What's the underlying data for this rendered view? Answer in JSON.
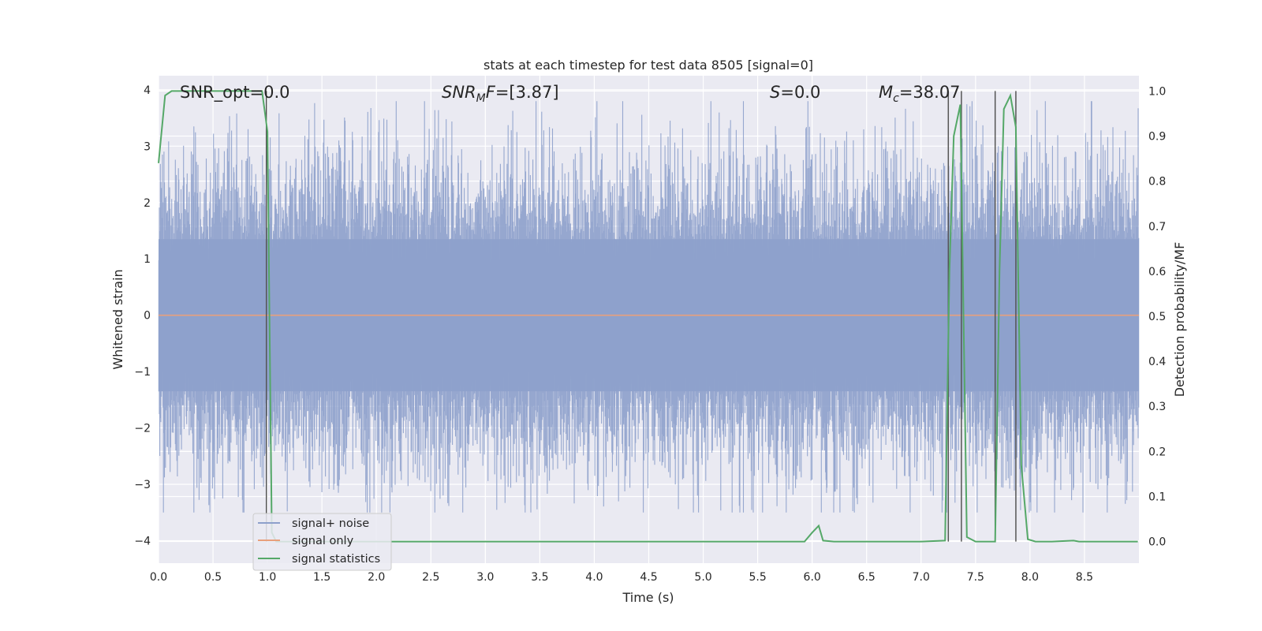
{
  "chart_data": {
    "type": "line",
    "title": "stats at each timestep for test data 8505 [signal=0]",
    "xlabel": "Time (s)",
    "ylabel": "Whitened strain",
    "ylabel_right": "Detection probability/MF",
    "xlim": [
      0.0,
      9.0
    ],
    "ylim": [
      -4.4,
      4.25
    ],
    "ylim_right": [
      -0.048,
      1.034
    ],
    "x_ticks": [
      "0.0",
      "0.5",
      "1.0",
      "1.5",
      "2.0",
      "2.5",
      "3.0",
      "3.5",
      "4.0",
      "4.5",
      "5.0",
      "5.5",
      "6.0",
      "6.5",
      "7.0",
      "7.5",
      "8.0",
      "8.5"
    ],
    "y_ticks": [
      "4",
      "3",
      "2",
      "1",
      "0",
      "−1",
      "−2",
      "−3",
      "−4"
    ],
    "y_right_ticks": [
      "1.0",
      "0.9",
      "0.8",
      "0.7",
      "0.6",
      "0.5",
      "0.4",
      "0.3",
      "0.2",
      "0.1",
      "0.0"
    ],
    "annotations": [
      {
        "name": "snr-opt",
        "text": "SNR_opt=0.0"
      },
      {
        "name": "snr-mf",
        "text": "SNR_MF=[3.87]"
      },
      {
        "name": "s-stat",
        "text": "S=0.0"
      },
      {
        "name": "chirp-mass",
        "text": "M_c=38.07"
      }
    ],
    "legend": {
      "placement": "lower-left",
      "entries": [
        {
          "label": "signal+ noise",
          "color": "#8da0cb"
        },
        {
          "label": "signal only",
          "color": "#e8a07c"
        },
        {
          "label": "signal statistics",
          "color": "#55a868"
        }
      ]
    },
    "series": [
      {
        "name": "signal+ noise",
        "color": "#8da0cb",
        "style": "dense whitened noise, approx. Gaussian, |max| about 3.8",
        "y_range": [
          -3.5,
          3.8
        ]
      },
      {
        "name": "signal only",
        "color": "#e8a07c",
        "x": [
          0.0,
          9.0
        ],
        "y": [
          0.0,
          0.0
        ]
      },
      {
        "name": "signal statistics",
        "color": "#55a868",
        "axis": "right",
        "x": [
          0.0,
          0.06,
          0.12,
          0.2,
          0.3,
          0.5,
          0.7,
          0.9,
          0.95,
          1.0,
          1.04,
          1.08,
          1.12,
          1.2,
          1.5,
          2.0,
          2.5,
          3.0,
          3.5,
          4.0,
          4.5,
          5.0,
          5.5,
          5.93,
          6.0,
          6.06,
          6.1,
          6.2,
          6.5,
          7.0,
          7.22,
          7.26,
          7.3,
          7.36,
          7.42,
          7.5,
          7.6,
          7.68,
          7.72,
          7.76,
          7.82,
          7.87,
          7.92,
          7.98,
          8.05,
          8.2,
          8.4,
          8.45,
          8.5,
          8.75,
          8.99
        ],
        "y": [
          0.84,
          0.99,
          1.0,
          1.0,
          1.0,
          1.0,
          1.0,
          1.0,
          1.0,
          0.91,
          0.02,
          0.0,
          0.0,
          0.0,
          0.0,
          0.0,
          0.0,
          0.0,
          0.0,
          0.0,
          0.0,
          0.0,
          0.0,
          0.0,
          0.02,
          0.035,
          0.002,
          0.0,
          0.0,
          0.0,
          0.002,
          0.6,
          0.9,
          0.97,
          0.01,
          0.0,
          0.0,
          0.0,
          0.6,
          0.96,
          0.99,
          0.92,
          0.17,
          0.005,
          0.0,
          0.0,
          0.002,
          0.0,
          0.0,
          0.0,
          0.0
        ]
      }
    ],
    "vlines": [
      0.99,
      7.25,
      7.37,
      7.68,
      7.87
    ]
  }
}
